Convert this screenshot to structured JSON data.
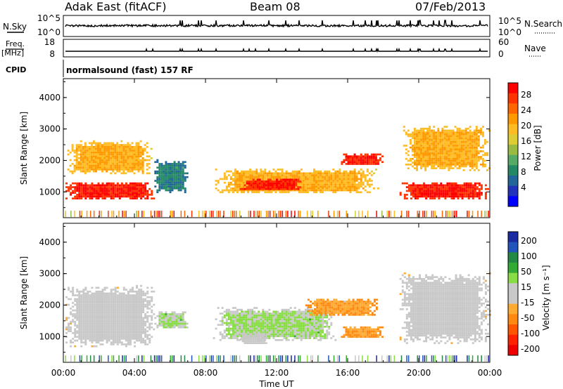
{
  "header": {
    "station": "Adak East (fitACF)",
    "beam": "Beam 08",
    "date": "07/Feb/2013"
  },
  "panels": {
    "nsky": {
      "left_label": "N.Sky",
      "left_ticks": [
        "10^5",
        "10^0"
      ],
      "right_label": "N.Search",
      "right_ticks": [
        "10^5",
        "10^0"
      ]
    },
    "freq": {
      "left_label_1": "Freq.",
      "left_label_2": "[MHz]",
      "left_ticks": [
        "18",
        "8"
      ],
      "right_label": "Nave",
      "right_ticks": [
        "60",
        "0"
      ]
    },
    "cpid": {
      "label": "CPID",
      "mode_text": "normalsound (fast) 157 RF"
    }
  },
  "colorbars": {
    "power": {
      "title": "Power [dB]",
      "ticks": [
        "28",
        "24",
        "20",
        "16",
        "12",
        "8",
        "4"
      ],
      "colors": [
        "#ff0000",
        "#ff3300",
        "#ff6600",
        "#ff9900",
        "#ffbb22",
        "#ddcc33",
        "#99bb44",
        "#55aa66",
        "#228866",
        "#226699",
        "#2233bb",
        "#0000ff"
      ]
    },
    "velocity": {
      "title": "Velocity [m s⁻¹]",
      "ticks": [
        "200",
        "100",
        "50",
        "15",
        "-15",
        "-50",
        "-100",
        "-200"
      ],
      "colors": [
        "#1a2aa0",
        "#2255bb",
        "#228844",
        "#33aa33",
        "#88dd44",
        "#c8c8c8",
        "#c8c8c8",
        "#ffaa33",
        "#ff8811",
        "#ff5500",
        "#ff2200",
        "#ee0000"
      ]
    }
  },
  "axes": {
    "ylabel": "Slant Range [km]",
    "yticks": [
      "4000",
      "3000",
      "2000",
      "1000"
    ],
    "xticks": [
      "00:00",
      "04:00",
      "08:00",
      "12:00",
      "16:00",
      "20:00",
      "00:00"
    ],
    "xlabel": "Time UT"
  },
  "chart_data": [
    {
      "type": "heatmap",
      "title": "Power [dB]",
      "xlabel": "Time UT",
      "ylabel": "Slant Range [km]",
      "xlim": [
        0,
        24
      ],
      "ylim": [
        180,
        4600
      ],
      "scale_range": [
        0,
        30
      ],
      "blobs": [
        {
          "t0": 0.0,
          "t1": 5.2,
          "r0": 700,
          "r1": 1300,
          "value": 28
        },
        {
          "t0": 0.1,
          "t1": 5.0,
          "r0": 1500,
          "r1": 2600,
          "value": 20
        },
        {
          "t0": 5.0,
          "t1": 7.0,
          "r0": 900,
          "r1": 2000,
          "value": 8
        },
        {
          "t0": 8.3,
          "t1": 17.8,
          "r0": 900,
          "r1": 1700,
          "value": 20
        },
        {
          "t0": 9.8,
          "t1": 13.5,
          "r0": 1000,
          "r1": 1400,
          "value": 28
        },
        {
          "t0": 15.5,
          "t1": 18.0,
          "r0": 1800,
          "r1": 2200,
          "value": 28
        },
        {
          "t0": 18.8,
          "t1": 24.0,
          "r0": 700,
          "r1": 1300,
          "value": 28
        },
        {
          "t0": 19.0,
          "t1": 24.0,
          "r0": 1600,
          "r1": 3100,
          "value": 20
        }
      ]
    },
    {
      "type": "heatmap",
      "title": "Velocity [m s⁻¹]",
      "xlabel": "Time UT",
      "ylabel": "Slant Range [km]",
      "xlim": [
        0,
        24
      ],
      "ylim": [
        180,
        4600
      ],
      "scale_range": [
        -200,
        200
      ],
      "blobs": [
        {
          "t0": 0.0,
          "t1": 5.2,
          "r0": 600,
          "r1": 2600,
          "value": 0
        },
        {
          "t0": 5.0,
          "t1": 7.0,
          "r0": 1200,
          "r1": 1800,
          "value": 40
        },
        {
          "t0": 8.3,
          "t1": 15.5,
          "r0": 800,
          "r1": 1900,
          "value": 40
        },
        {
          "t0": 9.8,
          "t1": 11.5,
          "r0": 700,
          "r1": 1100,
          "value": 0
        },
        {
          "t0": 13.5,
          "t1": 17.8,
          "r0": 1600,
          "r1": 2200,
          "value": -60
        },
        {
          "t0": 15.5,
          "t1": 18.0,
          "r0": 900,
          "r1": 1300,
          "value": -60
        },
        {
          "t0": 18.8,
          "t1": 24.0,
          "r0": 700,
          "r1": 3000,
          "value": 0
        }
      ]
    }
  ]
}
